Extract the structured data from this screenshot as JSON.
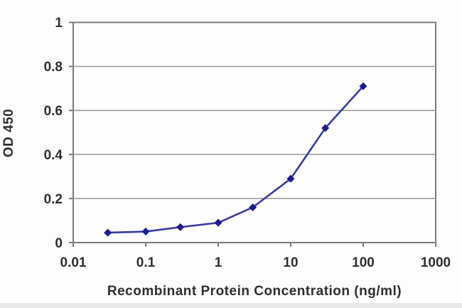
{
  "chart_data": {
    "type": "line",
    "title": "",
    "xlabel": "Recombinant Protein Concentration (ng/ml)",
    "ylabel": "OD 450",
    "x_scale": "log",
    "xlim": [
      0.01,
      1000
    ],
    "ylim": [
      0,
      1
    ],
    "x": [
      0.03,
      0.1,
      0.3,
      1,
      3,
      10,
      30,
      100
    ],
    "y": [
      0.045,
      0.05,
      0.07,
      0.09,
      0.16,
      0.29,
      0.52,
      0.71
    ],
    "x_ticks": [
      "0.01",
      "0.1",
      "1",
      "10",
      "100",
      "1000"
    ],
    "y_ticks": [
      "0",
      "0.2",
      "0.4",
      "0.6",
      "0.8",
      "1"
    ],
    "grid": "horizontal-only",
    "legend": "none",
    "marker": "diamond",
    "colors": {
      "line": "#3A3A9E",
      "marker": "#1B1B8A",
      "gridline": "#9E9E9E",
      "plot_border": "#7A7A7A",
      "text": "#2E2E2E",
      "plot_background": "#FEFEFE",
      "figure_background": "#FDFDFD"
    }
  }
}
